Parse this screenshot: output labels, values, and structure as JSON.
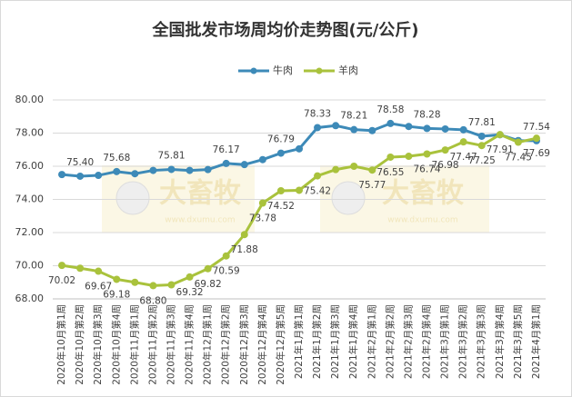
{
  "chart_data": {
    "type": "line",
    "title": "全国批发市场周均价走势图(元/公斤)",
    "categories": [
      "2020年10月第1周",
      "2020年10月第2周",
      "2020年10月第3周",
      "2020年10月第4周",
      "2020年11月第1周",
      "2020年11月第2周",
      "2020年11月第3周",
      "2020年11月第4周",
      "2020年12月第1周",
      "2020年12月第2周",
      "2020年12月第3周",
      "2020年12月第4周",
      "2020年12月第5周",
      "2021年1月第1周",
      "2021年1月第2周",
      "2021年1月第3周",
      "2021年1月第4周",
      "2021年2月第1周",
      "2021年2月第2周",
      "2021年2月第3周",
      "2021年2月第4周",
      "2021年3月第1周",
      "2021年3月第2周",
      "2021年3月第3周",
      "2021年3月第4周",
      "2021年3月第5周",
      "2021年4月第1周"
    ],
    "series": [
      {
        "name": "牛肉",
        "color": "#3d8ab8",
        "values": [
          75.5,
          75.4,
          75.45,
          75.68,
          75.55,
          75.75,
          75.81,
          75.75,
          75.8,
          76.17,
          76.1,
          76.4,
          76.79,
          77.05,
          78.33,
          78.45,
          78.21,
          78.15,
          78.58,
          78.4,
          78.28,
          78.25,
          78.2,
          77.81,
          77.9,
          77.55,
          77.54
        ],
        "value_labels": [
          null,
          "75.40",
          null,
          "75.68",
          null,
          null,
          "75.81",
          null,
          null,
          "76.17",
          null,
          null,
          "76.79",
          null,
          "78.33",
          null,
          "78.21",
          null,
          "78.58",
          null,
          "78.28",
          null,
          null,
          "77.81",
          null,
          null,
          "77.54"
        ]
      },
      {
        "name": "羊肉",
        "color": "#a9c23c",
        "values": [
          70.02,
          69.85,
          69.67,
          69.18,
          69.0,
          68.8,
          68.85,
          69.32,
          69.82,
          70.59,
          71.88,
          73.78,
          74.52,
          74.55,
          75.42,
          75.8,
          76.0,
          75.77,
          76.55,
          76.6,
          76.74,
          76.98,
          77.47,
          77.25,
          77.91,
          77.45,
          77.69
        ],
        "value_labels": [
          "70.02",
          null,
          "69.67",
          "69.18",
          null,
          "68.80",
          null,
          "69.32",
          "69.82",
          "70.59",
          "71.88",
          "73.78",
          "74.52",
          null,
          "75.42",
          null,
          null,
          "75.77",
          "76.55",
          null,
          "76.74",
          "76.98",
          "77.47",
          "77.25",
          "77.91",
          "77.45",
          "77.69"
        ]
      }
    ],
    "ylim": [
      68,
      80
    ],
    "yticks": [
      {
        "value": 68,
        "label": "68.00"
      },
      {
        "value": 70,
        "label": "70.00"
      },
      {
        "value": 72,
        "label": "72.00"
      },
      {
        "value": 74,
        "label": "74.00"
      },
      {
        "value": 76,
        "label": "76.00"
      },
      {
        "value": 78,
        "label": "78.00"
      },
      {
        "value": 80,
        "label": "80.00"
      }
    ],
    "grid": true,
    "legend": "top",
    "watermark": {
      "brand": "大畜牧",
      "url": "www.dxumu.com"
    }
  }
}
